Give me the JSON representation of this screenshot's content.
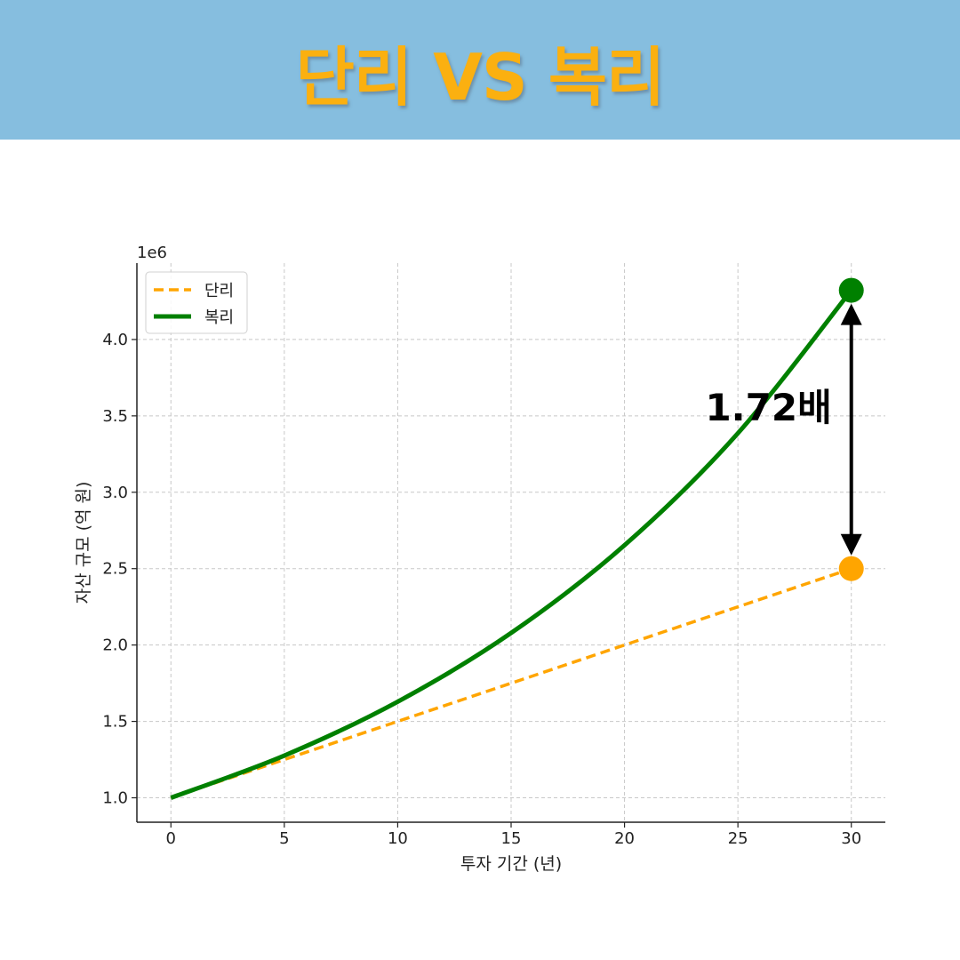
{
  "banner": {
    "title": "단리 VS 복리",
    "background": "#86bedf",
    "title_color": "#fbb010"
  },
  "chart_data": {
    "type": "line",
    "x": [
      0,
      5,
      10,
      15,
      20,
      25,
      30
    ],
    "xlabel": "투자 기간 (년)",
    "ylabel": "자산 규모 (억 원)",
    "offset_label": "1e6",
    "xlim": [
      -1.5,
      31.5
    ],
    "ylim": [
      0.84,
      4.5
    ],
    "x_ticks": [
      0,
      5,
      10,
      15,
      20,
      25,
      30
    ],
    "x_tick_labels": [
      "0",
      "5",
      "10",
      "15",
      "20",
      "25",
      "30"
    ],
    "y_ticks": [
      1.0,
      1.5,
      2.0,
      2.5,
      3.0,
      3.5,
      4.0
    ],
    "y_tick_labels": [
      "1.0",
      "1.5",
      "2.0",
      "2.5",
      "3.0",
      "3.5",
      "4.0"
    ],
    "grid": true,
    "legend_position": "top-left",
    "series": [
      {
        "name": "단리",
        "style": "dashed",
        "color": "#ffa500",
        "values": [
          1.0,
          1.25,
          1.5,
          1.75,
          2.0,
          2.25,
          2.5
        ]
      },
      {
        "name": "복리",
        "style": "solid",
        "color": "#008000",
        "values": [
          1.0,
          1.2763,
          1.6289,
          2.0789,
          2.6533,
          3.3864,
          4.3219
        ]
      }
    ],
    "endpoints": [
      {
        "series": "복리",
        "x": 30,
        "y": 4.3219,
        "color": "#008000"
      },
      {
        "series": "단리",
        "x": 30,
        "y": 2.5,
        "color": "#ffa500"
      }
    ],
    "annotation": {
      "text": "1.72배",
      "x": 30,
      "y_from": 2.5,
      "y_to": 4.3219
    }
  }
}
